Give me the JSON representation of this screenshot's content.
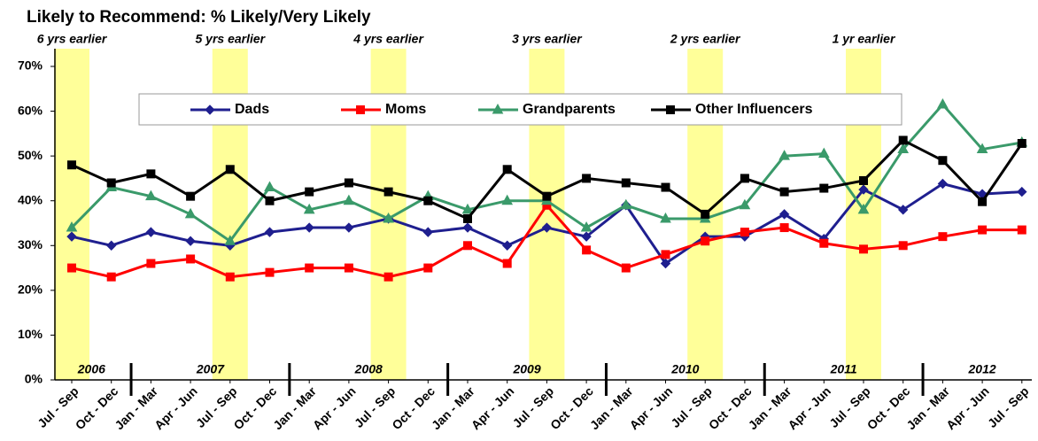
{
  "chart_data": {
    "type": "line",
    "title": "Likely to Recommend:  % Likely/Very Likely",
    "categories": [
      "Jul - Sep",
      "Oct - Dec",
      "Jan - Mar",
      "Apr - Jun",
      "Jul - Sep",
      "Oct - Dec",
      "Jan - Mar",
      "Apr - Jun",
      "Jul - Sep",
      "Oct - Dec",
      "Jan - Mar",
      "Apr - Jun",
      "Jul - Sep",
      "Oct - Dec",
      "Jan - Mar",
      "Apr - Jun",
      "Jul - Sep",
      "Oct - Dec",
      "Jan - Mar",
      "Apr - Jun",
      "Jul - Sep",
      "Oct - Dec",
      "Jan - Mar",
      "Apr - Jun",
      "Jul - Sep"
    ],
    "years": [
      "2006",
      "2007",
      "2008",
      "2009",
      "2010",
      "2011",
      "2012"
    ],
    "highlights": [
      "6 yrs earlier",
      "5 yrs earlier",
      "4 yrs earlier",
      "3 yrs earlier",
      "2 yrs earlier",
      "1 yr earlier"
    ],
    "highlight_color": "#ffff99",
    "series": [
      {
        "name": "Dads",
        "color": "#1f1f8f",
        "marker": "diamond",
        "values": [
          32,
          30,
          33,
          31,
          30,
          33,
          34,
          34,
          36,
          33,
          34,
          30,
          34,
          32,
          39,
          26,
          32,
          32,
          37,
          31.5,
          42.5,
          38,
          43.8,
          41.5,
          42
        ]
      },
      {
        "name": "Moms",
        "color": "#ff0000",
        "marker": "square",
        "values": [
          25,
          23,
          26,
          27,
          23,
          24,
          25,
          25,
          23,
          25,
          30,
          26,
          39,
          29,
          25,
          28,
          31,
          33,
          34,
          30.5,
          29.2,
          30,
          32,
          33.5,
          33.5
        ]
      },
      {
        "name": "Grandparents",
        "color": "#3a9a6a",
        "marker": "triangle",
        "values": [
          34,
          43,
          41,
          37,
          31,
          43,
          38,
          40,
          36,
          41,
          38,
          40,
          40,
          34,
          39,
          36,
          36,
          39,
          50,
          50.5,
          38,
          51.5,
          61.5,
          51.5,
          53
        ]
      },
      {
        "name": "Other Influencers",
        "color": "#000000",
        "marker": "square",
        "values": [
          48,
          44,
          46,
          41,
          47,
          40,
          42,
          44,
          42,
          40,
          36,
          47,
          41,
          45,
          44,
          43,
          37,
          45,
          42,
          42.8,
          44.5,
          53.5,
          49,
          39.8,
          52.8
        ]
      }
    ],
    "ylim": [
      0,
      70
    ],
    "yticks": [
      {
        "value": 0,
        "label": "0%"
      },
      {
        "value": 10,
        "label": "10%"
      },
      {
        "value": 20,
        "label": "20%"
      },
      {
        "value": 30,
        "label": "30%"
      },
      {
        "value": 40,
        "label": "40%"
      },
      {
        "value": 50,
        "label": "50%"
      },
      {
        "value": 60,
        "label": "60%"
      },
      {
        "value": 70,
        "label": "70%"
      }
    ],
    "grid": false
  }
}
